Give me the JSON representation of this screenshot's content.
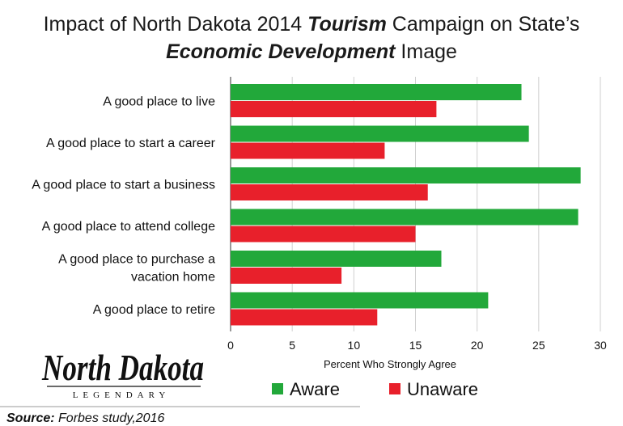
{
  "title": {
    "line1_part1": "Impact of North Dakota 2014 ",
    "line1_emph": "Tourism",
    "line1_part2": " Campaign on State’s",
    "line2_emph": "Economic Development",
    "line2_part2": " Image"
  },
  "logo": {
    "main": "North Dakota",
    "sub": "LEGENDARY"
  },
  "source": {
    "label": "Source:",
    "text": " Forbes study,2016"
  },
  "colors": {
    "aware": "#22a83a",
    "unaware": "#e8202b",
    "grid": "#cfcfcf",
    "axis": "#555555"
  },
  "chart_data": {
    "type": "bar",
    "orientation": "horizontal",
    "categories": [
      [
        "A good place to live"
      ],
      [
        "A good place to start a career"
      ],
      [
        "A good place to start a business"
      ],
      [
        "A good place to attend college"
      ],
      [
        "A good place to purchase a",
        "vacation home"
      ],
      [
        "A good place to retire"
      ]
    ],
    "series": [
      {
        "name": "Aware",
        "values": [
          23.6,
          24.2,
          28.4,
          28.2,
          17.1,
          20.9
        ]
      },
      {
        "name": "Unaware",
        "values": [
          16.7,
          12.5,
          16.0,
          15.0,
          9.0,
          11.9
        ]
      }
    ],
    "xlabel": "Percent Who Strongly Agree",
    "xlim": [
      0,
      30
    ],
    "xticks": [
      "0",
      "5",
      "10",
      "15",
      "20",
      "25",
      "30"
    ],
    "grid": true,
    "legend": "bottom"
  }
}
